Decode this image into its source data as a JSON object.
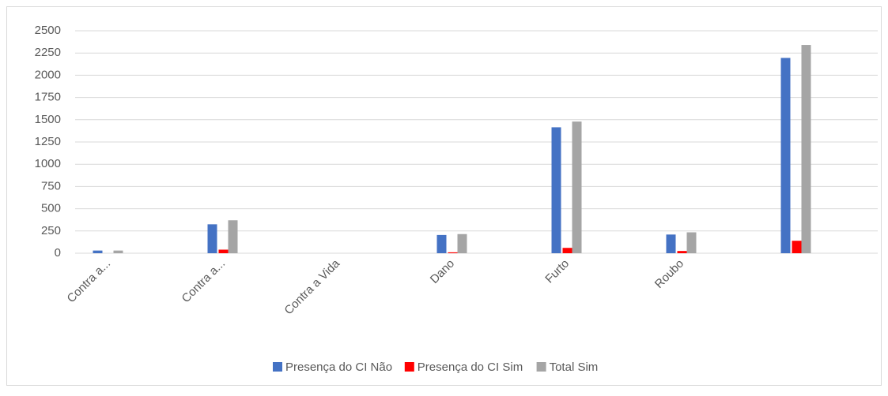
{
  "chart_data": {
    "type": "bar",
    "categories": [
      "Contra a...",
      "Contra a...",
      "Contra a Vida",
      "Dano",
      "Furto",
      "Roubo",
      null
    ],
    "series": [
      {
        "name": "Presença do CI Não",
        "color": "#4472c4",
        "values": [
          30,
          325,
          0,
          205,
          1415,
          210,
          2195
        ]
      },
      {
        "name": "Presença do CI Sim",
        "color": "#ff0000",
        "values": [
          0,
          40,
          0,
          10,
          60,
          25,
          140
        ]
      },
      {
        "name": "Total Sim",
        "color": "#a5a5a5",
        "values": [
          30,
          370,
          0,
          215,
          1480,
          235,
          2340
        ]
      }
    ],
    "ylim": [
      0,
      2500
    ],
    "yticks": [
      0,
      250,
      500,
      750,
      1000,
      1250,
      1500,
      1750,
      2000,
      2250,
      2500
    ],
    "grid": true,
    "legend": "bottom"
  }
}
